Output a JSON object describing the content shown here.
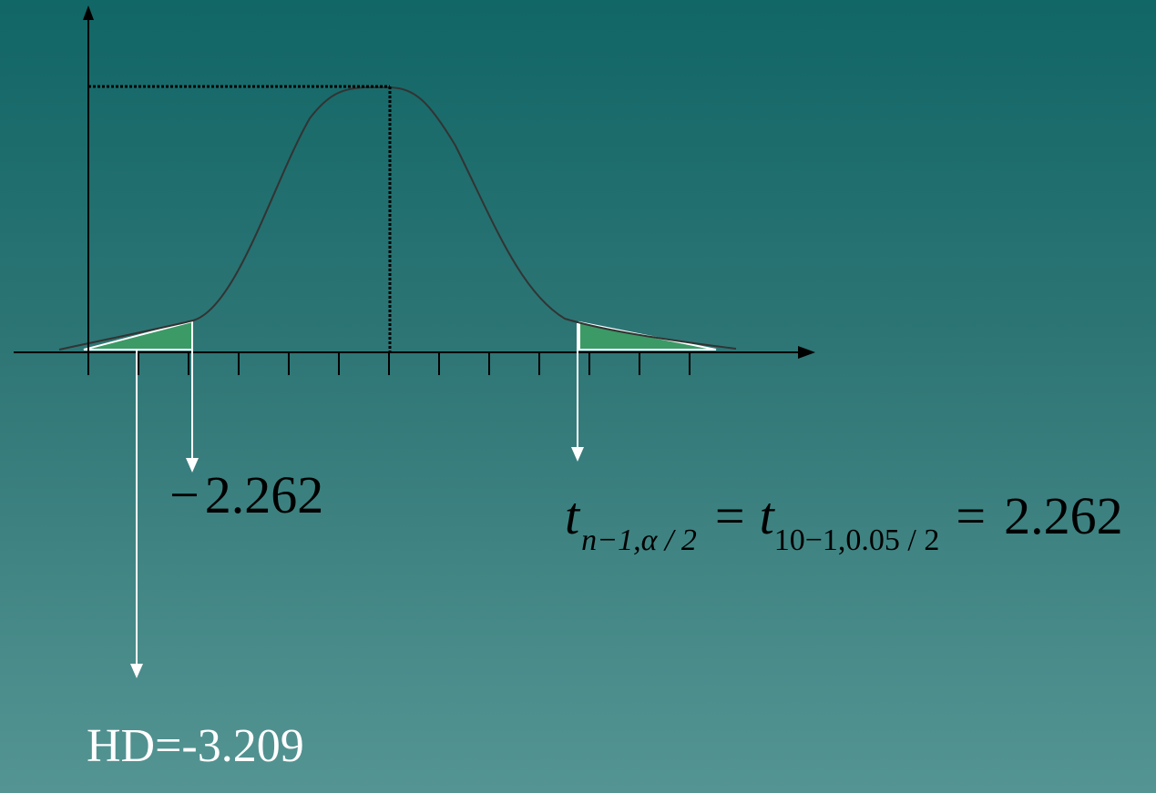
{
  "labels": {
    "negative_critical": "−2.262",
    "negative_critical_minus": "−",
    "negative_critical_value": "2.262",
    "formula": {
      "t1": "t",
      "sub1": "n−1,α / 2",
      "eq1": "=",
      "t2": "t",
      "sub2": "10−1,0.05 / 2",
      "eq2": "=",
      "value": "2.262"
    },
    "test_statistic": "HD=-3.209"
  },
  "colors": {
    "background_top": "#116666",
    "background_bottom": "#549593",
    "rejection_region": "#3b9a66",
    "curve": "#333333",
    "axis": "#000000",
    "arrows": "#ffffff"
  }
}
